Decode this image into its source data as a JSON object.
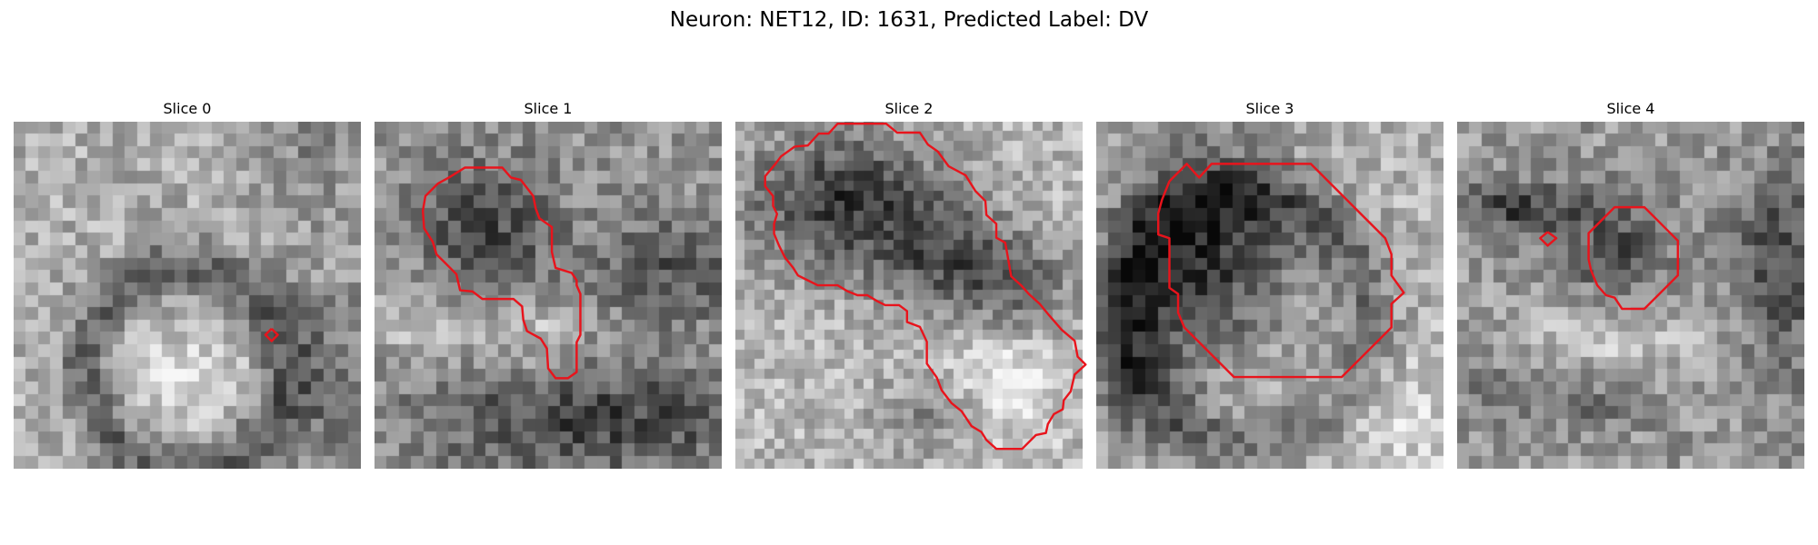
{
  "figure": {
    "title": "Neuron: NET12, ID: 1631, Predicted Label: DV",
    "contour_color": "#e8141c"
  },
  "panels": [
    {
      "title": "Slice 0",
      "contour": [
        [
          20.8,
          16.7
        ],
        [
          21.3,
          17.2
        ],
        [
          20.8,
          17.7
        ],
        [
          20.3,
          17.2
        ],
        [
          20.8,
          16.7
        ]
      ]
    },
    {
      "title": "Slice 1",
      "contour": [
        [
          6.0,
          4.5
        ],
        [
          7.3,
          3.7
        ],
        [
          10.3,
          3.7
        ],
        [
          11.0,
          4.5
        ],
        [
          11.8,
          4.7
        ],
        [
          12.8,
          6.0
        ],
        [
          13.0,
          7.0
        ],
        [
          13.3,
          7.8
        ],
        [
          14.3,
          8.5
        ],
        [
          14.3,
          10.5
        ],
        [
          14.6,
          11.8
        ],
        [
          15.9,
          12.2
        ],
        [
          16.3,
          12.8
        ],
        [
          16.3,
          13.2
        ],
        [
          16.6,
          13.9
        ],
        [
          16.6,
          17.2
        ],
        [
          16.3,
          17.8
        ],
        [
          16.3,
          20.2
        ],
        [
          15.6,
          20.7
        ],
        [
          14.6,
          20.7
        ],
        [
          14.0,
          19.9
        ],
        [
          13.9,
          18.3
        ],
        [
          13.4,
          17.5
        ],
        [
          12.3,
          16.9
        ],
        [
          12.0,
          16.0
        ],
        [
          11.9,
          14.9
        ],
        [
          11.2,
          14.3
        ],
        [
          8.7,
          14.3
        ],
        [
          7.9,
          13.7
        ],
        [
          6.9,
          13.6
        ],
        [
          6.6,
          12.3
        ],
        [
          5.7,
          11.4
        ],
        [
          5.0,
          10.7
        ],
        [
          4.7,
          9.7
        ],
        [
          4.0,
          8.6
        ],
        [
          3.9,
          7.2
        ],
        [
          4.1,
          6.0
        ],
        [
          5.1,
          5.0
        ],
        [
          6.0,
          4.5
        ]
      ]
    },
    {
      "title": "Slice 2",
      "contour": [
        [
          6.0,
          2.5
        ],
        [
          7.3,
          2.4
        ],
        [
          8.4,
          1.2
        ],
        [
          9.4,
          1.2
        ],
        [
          10.3,
          0.2
        ],
        [
          15.2,
          0.2
        ],
        [
          16.3,
          1.1
        ],
        [
          18.6,
          1.1
        ],
        [
          19.4,
          2.3
        ],
        [
          20.4,
          3.0
        ],
        [
          21.5,
          4.5
        ],
        [
          23.2,
          5.4
        ],
        [
          24.2,
          7.0
        ],
        [
          25.2,
          8.0
        ],
        [
          25.3,
          9.4
        ],
        [
          26.3,
          10.3
        ],
        [
          26.3,
          11.7
        ],
        [
          27.2,
          12.2
        ],
        [
          27.4,
          13.3
        ],
        [
          27.8,
          15.6
        ],
        [
          28.8,
          16.5
        ],
        [
          29.6,
          17.4
        ],
        [
          30.7,
          18.4
        ],
        [
          31.6,
          19.5
        ],
        [
          32.9,
          21.0
        ],
        [
          34.2,
          22.1
        ],
        [
          34.5,
          23.7
        ],
        [
          35.3,
          24.5
        ],
        [
          34.2,
          25.5
        ],
        [
          33.8,
          27.2
        ],
        [
          33.1,
          28.1
        ],
        [
          33.0,
          29.0
        ],
        [
          32.1,
          29.5
        ],
        [
          31.5,
          30.5
        ],
        [
          31.3,
          31.4
        ],
        [
          30.3,
          31.6
        ],
        [
          29.3,
          32.6
        ],
        [
          28.9,
          33.0
        ],
        [
          26.3,
          33.0
        ],
        [
          25.3,
          32.1
        ],
        [
          24.8,
          31.3
        ],
        [
          23.8,
          30.7
        ],
        [
          22.8,
          29.2
        ],
        [
          21.8,
          28.4
        ],
        [
          20.8,
          27.1
        ],
        [
          20.3,
          25.8
        ],
        [
          19.3,
          24.4
        ],
        [
          19.3,
          22.2
        ],
        [
          18.6,
          20.7
        ],
        [
          17.3,
          20.2
        ],
        [
          17.3,
          19.1
        ],
        [
          16.5,
          18.5
        ],
        [
          15.1,
          18.5
        ],
        [
          14.3,
          18.1
        ],
        [
          13.3,
          17.5
        ],
        [
          12.3,
          17.5
        ],
        [
          11.3,
          17.1
        ],
        [
          10.3,
          16.5
        ],
        [
          9.3,
          16.5
        ],
        [
          8.3,
          16.5
        ],
        [
          7.3,
          16.0
        ],
        [
          6.3,
          15.5
        ],
        [
          5.8,
          14.7
        ],
        [
          5.0,
          13.7
        ],
        [
          4.4,
          12.5
        ],
        [
          3.9,
          11.3
        ],
        [
          3.9,
          10.3
        ],
        [
          4.2,
          9.3
        ],
        [
          3.8,
          8.5
        ],
        [
          3.8,
          7.5
        ],
        [
          3.0,
          6.5
        ],
        [
          3.0,
          5.5
        ],
        [
          4.0,
          4.3
        ],
        [
          4.6,
          3.5
        ],
        [
          6.0,
          2.5
        ]
      ]
    },
    {
      "title": "Slice 3",
      "contour": [
        [
          5.9,
          4.8
        ],
        [
          7.3,
          3.4
        ],
        [
          8.1,
          4.3
        ],
        [
          8.3,
          4.5
        ],
        [
          9.3,
          3.4
        ],
        [
          17.3,
          3.4
        ],
        [
          18.3,
          4.4
        ],
        [
          19.3,
          5.4
        ],
        [
          20.3,
          6.4
        ],
        [
          21.3,
          7.4
        ],
        [
          22.3,
          8.4
        ],
        [
          23.3,
          9.4
        ],
        [
          23.8,
          10.7
        ],
        [
          23.8,
          12.4
        ],
        [
          24.8,
          13.8
        ],
        [
          23.8,
          14.7
        ],
        [
          23.8,
          16.6
        ],
        [
          22.8,
          17.6
        ],
        [
          21.8,
          18.6
        ],
        [
          20.8,
          19.6
        ],
        [
          19.8,
          20.6
        ],
        [
          11.1,
          20.6
        ],
        [
          10.1,
          19.6
        ],
        [
          9.1,
          18.6
        ],
        [
          8.1,
          17.6
        ],
        [
          7.1,
          16.6
        ],
        [
          6.6,
          15.4
        ],
        [
          6.6,
          13.9
        ],
        [
          5.9,
          13.4
        ],
        [
          5.9,
          11.4
        ],
        [
          5.9,
          9.4
        ],
        [
          5.0,
          9.1
        ],
        [
          5.0,
          7.4
        ],
        [
          5.3,
          6.3
        ],
        [
          5.9,
          4.8
        ]
      ]
    },
    {
      "title": "Slice 4",
      "contour": [
        [
          7.3,
          8.9
        ],
        [
          8.0,
          9.4
        ],
        [
          7.3,
          10.0
        ],
        [
          6.7,
          9.4
        ],
        [
          7.3,
          8.9
        ]
      ]
    },
    {
      "title": "",
      "contour": [
        [
          11.3,
          8.3
        ],
        [
          11.9,
          7.7
        ],
        [
          12.7,
          6.9
        ],
        [
          15.1,
          6.9
        ],
        [
          16.0,
          7.8
        ],
        [
          16.9,
          8.7
        ],
        [
          17.8,
          9.6
        ],
        [
          17.8,
          12.4
        ],
        [
          16.9,
          13.3
        ],
        [
          16.0,
          14.2
        ],
        [
          15.1,
          15.1
        ],
        [
          14.2,
          15.1
        ],
        [
          13.3,
          15.1
        ],
        [
          12.7,
          14.2
        ],
        [
          12.0,
          14.0
        ],
        [
          11.3,
          13.2
        ],
        [
          10.8,
          12.0
        ],
        [
          10.6,
          11.1
        ],
        [
          10.6,
          9.9
        ],
        [
          10.6,
          9.0
        ],
        [
          11.3,
          8.3
        ]
      ]
    }
  ]
}
